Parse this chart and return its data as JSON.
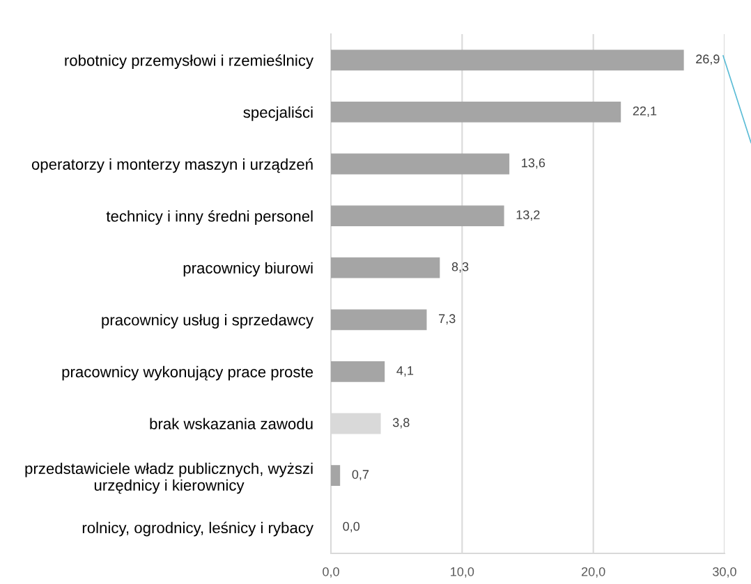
{
  "chart_data": {
    "type": "bar",
    "orientation": "horizontal",
    "categories": [
      "robotnicy przemysłowi i rzemieślnicy",
      "specjaliści",
      "operatorzy i monterzy maszyn i urządzeń",
      "technicy i inny średni personel",
      "pracownicy biurowi",
      "pracownicy usług i sprzedawcy",
      "pracownicy wykonujący prace proste",
      "brak wskazania zawodu",
      "przedstawiciele władz publicznych, wyższi\nurzędnicy i kierownicy",
      "rolnicy, ogrodnicy, leśnicy i rybacy"
    ],
    "values": [
      26.9,
      22.1,
      13.6,
      13.2,
      8.3,
      7.3,
      4.1,
      3.8,
      0.7,
      0.0
    ],
    "value_labels": [
      "26,9",
      "22,1",
      "13,6",
      "13,2",
      "8,3",
      "7,3",
      "4,1",
      "3,8",
      "0,7",
      "0,0"
    ],
    "colors": [
      "#a5a5a5",
      "#a5a5a5",
      "#a5a5a5",
      "#a5a5a5",
      "#a5a5a5",
      "#a5a5a5",
      "#a5a5a5",
      "#d9d9d9",
      "#a5a5a5",
      "#a5a5a5"
    ],
    "xlim": [
      0,
      30
    ],
    "xticks": [
      {
        "value": 0,
        "label": "0,0"
      },
      {
        "value": 10,
        "label": "10,0"
      },
      {
        "value": 20,
        "label": "20,0"
      },
      {
        "value": 30,
        "label": "30,0"
      }
    ],
    "grid": "x"
  }
}
